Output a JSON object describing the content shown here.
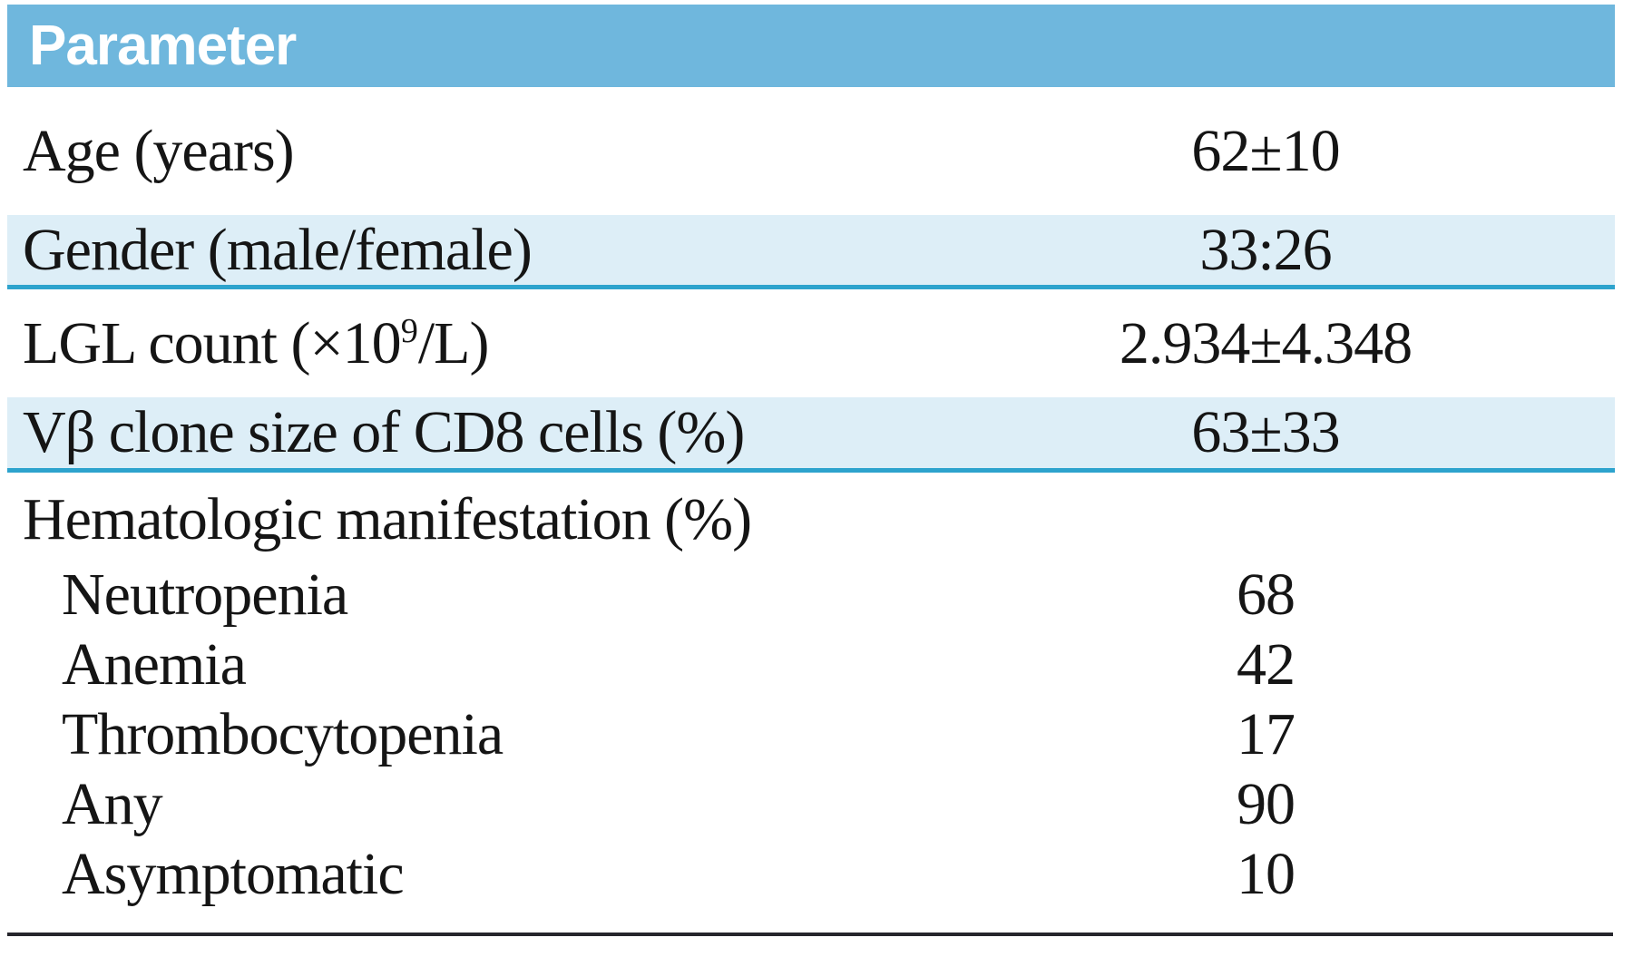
{
  "header": {
    "title": "Parameter"
  },
  "rows": [
    {
      "label": "Age (years)",
      "value": "62±10"
    },
    {
      "label": "Gender (male/female)",
      "value": "33:26"
    },
    {
      "label_pre": "LGL count (×10",
      "label_sup": "9",
      "label_post": "/L)",
      "value": "2.934±4.348"
    },
    {
      "label": "Vβ clone size of CD8 cells (%)",
      "value": "63±33"
    },
    {
      "label": "Hematologic manifestation (%)",
      "value": ""
    },
    {
      "label": "Neutropenia",
      "value": "68"
    },
    {
      "label": "Anemia",
      "value": "42"
    },
    {
      "label": "Thrombocytopenia",
      "value": "17"
    },
    {
      "label": "Any",
      "value": "90"
    },
    {
      "label": "Asymptomatic",
      "value": "10"
    }
  ],
  "colors": {
    "header_bg": "#6fb7dd",
    "header_text": "#ffffff",
    "shaded_row_bg": "#ddeef7",
    "row_divider": "#2da3cd",
    "bottom_rule": "#26262c",
    "body_text": "#151515"
  }
}
